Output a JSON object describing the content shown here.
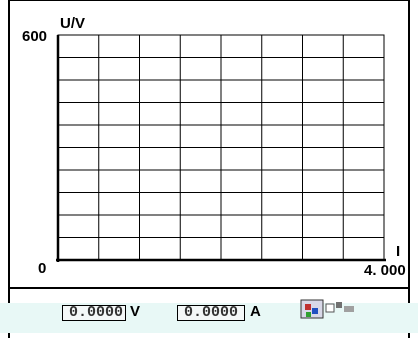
{
  "plot": {
    "y_axis_label": "U/V",
    "y_max_label": "600",
    "origin_label": "0",
    "x_axis_label": "I",
    "x_max_label": "4. 000"
  },
  "readouts": {
    "voltage_value": "0.0000",
    "voltage_unit": "V",
    "current_value": "0.0000",
    "current_unit": "A"
  },
  "status_icon": "control-panel-icon"
}
